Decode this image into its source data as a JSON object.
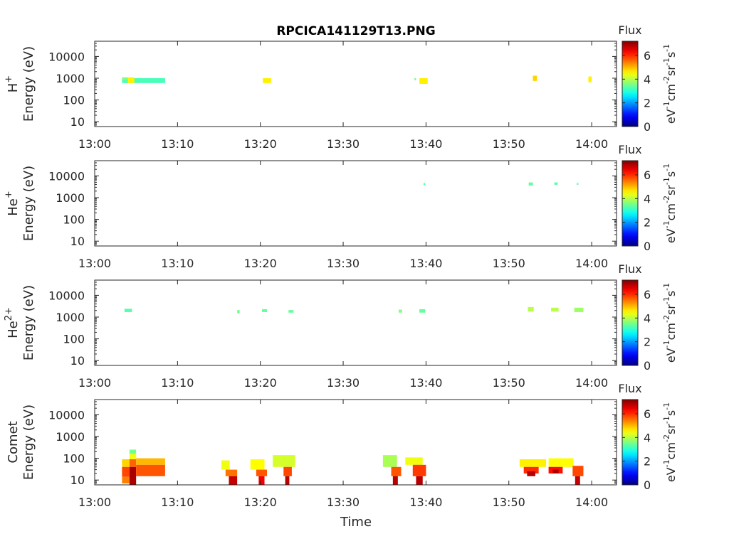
{
  "figure": {
    "title": "RPCICA141129T13.PNG",
    "xlabel": "Time"
  },
  "colorbar": {
    "title": "Flux",
    "ticks": [
      "0",
      "2",
      "4",
      "6"
    ],
    "label_parts": [
      "eV",
      "-1",
      "cm",
      "-2",
      "sr",
      "-1",
      "s",
      "-1"
    ],
    "range": [
      0,
      7.2
    ],
    "colormap": "jet"
  },
  "chart_data": [
    {
      "type": "heatmap",
      "species_base": "H",
      "species_sup": "+",
      "ylabel": "Energy (eV)",
      "y_scale": "log",
      "ylim": [
        6,
        50000
      ],
      "y_ticks": [
        "10",
        "100",
        "1000",
        "10000"
      ],
      "x_ticks": [
        "13:00",
        "13:10",
        "13:20",
        "13:30",
        "13:40",
        "13:50",
        "14:00"
      ],
      "xlim": [
        "13:00",
        "14:03"
      ],
      "cells": [
        {
          "t0": "13:03.3",
          "t1": "13:08.5",
          "e0": 600,
          "e1": 1000,
          "v": 3.2
        },
        {
          "t0": "13:03.3",
          "t1": "13:04.0",
          "e0": 800,
          "e1": 1100,
          "v": 3.6
        },
        {
          "t0": "13:04.0",
          "t1": "13:04.8",
          "e0": 600,
          "e1": 1100,
          "v": 4.6
        },
        {
          "t0": "13:20.3",
          "t1": "13:21.3",
          "e0": 600,
          "e1": 1000,
          "v": 4.6
        },
        {
          "t0": "13:38.6",
          "t1": "13:38.8",
          "e0": 800,
          "e1": 1000,
          "v": 3.6
        },
        {
          "t0": "13:39.2",
          "t1": "13:40.2",
          "e0": 550,
          "e1": 1000,
          "v": 4.6
        },
        {
          "t0": "13:52.9",
          "t1": "13:53.4",
          "e0": 750,
          "e1": 1300,
          "v": 4.8
        },
        {
          "t0": "13:59.6",
          "t1": "14:00.0",
          "e0": 650,
          "e1": 1200,
          "v": 4.6
        }
      ]
    },
    {
      "type": "heatmap",
      "species_base": "He",
      "species_sup": "+",
      "ylabel": "Energy (eV)",
      "y_scale": "log",
      "ylim": [
        6,
        50000
      ],
      "y_ticks": [
        "10",
        "100",
        "1000",
        "10000"
      ],
      "x_ticks": [
        "13:00",
        "13:10",
        "13:20",
        "13:30",
        "13:40",
        "13:50",
        "14:00"
      ],
      "xlim": [
        "13:00",
        "14:03"
      ],
      "cells": [
        {
          "t0": "13:39.7",
          "t1": "13:39.9",
          "e0": 3800,
          "e1": 4700,
          "v": 3.3
        },
        {
          "t0": "13:52.4",
          "t1": "13:52.9",
          "e0": 3600,
          "e1": 5000,
          "v": 3.4
        },
        {
          "t0": "13:55.5",
          "t1": "13:55.9",
          "e0": 3900,
          "e1": 5000,
          "v": 3.3
        },
        {
          "t0": "13:58.2",
          "t1": "13:58.4",
          "e0": 3900,
          "e1": 4700,
          "v": 3.3
        }
      ]
    },
    {
      "type": "heatmap",
      "species_base": "He",
      "species_sup": "2+",
      "ylabel": "Energy (eV)",
      "y_scale": "log",
      "ylim": [
        6,
        50000
      ],
      "y_ticks": [
        "10",
        "100",
        "1000",
        "10000"
      ],
      "x_ticks": [
        "13:00",
        "13:10",
        "13:20",
        "13:30",
        "13:40",
        "13:50",
        "14:00"
      ],
      "xlim": [
        "13:00",
        "14:03"
      ],
      "cells": [
        {
          "t0": "13:03.6",
          "t1": "13:04.5",
          "e0": 1700,
          "e1": 2400,
          "v": 3.3
        },
        {
          "t0": "13:17.2",
          "t1": "13:17.5",
          "e0": 1500,
          "e1": 2100,
          "v": 3.5
        },
        {
          "t0": "13:20.2",
          "t1": "13:20.8",
          "e0": 1700,
          "e1": 2300,
          "v": 3.4
        },
        {
          "t0": "13:23.4",
          "t1": "13:24.0",
          "e0": 1600,
          "e1": 2100,
          "v": 3.4
        },
        {
          "t0": "13:36.7",
          "t1": "13:37.1",
          "e0": 1600,
          "e1": 2200,
          "v": 3.6
        },
        {
          "t0": "13:39.2",
          "t1": "13:39.9",
          "e0": 1600,
          "e1": 2300,
          "v": 3.4
        },
        {
          "t0": "13:52.3",
          "t1": "13:53.0",
          "e0": 1800,
          "e1": 2900,
          "v": 4.0
        },
        {
          "t0": "13:55.1",
          "t1": "13:56.0",
          "e0": 1800,
          "e1": 2700,
          "v": 4.0
        },
        {
          "t0": "13:57.9",
          "t1": "13:59.0",
          "e0": 1700,
          "e1": 2700,
          "v": 3.8
        }
      ]
    },
    {
      "type": "heatmap",
      "species_base": "Comet",
      "species_sup": "",
      "ylabel": "Energy (eV)",
      "y_scale": "log",
      "ylim": [
        6,
        50000
      ],
      "y_ticks": [
        "10",
        "100",
        "1000",
        "10000"
      ],
      "x_ticks": [
        "13:00",
        "13:10",
        "13:20",
        "13:30",
        "13:40",
        "13:50",
        "14:00"
      ],
      "xlim": [
        "13:00",
        "14:03"
      ],
      "cells": [
        {
          "t0": "13:03.3",
          "t1": "13:04.2",
          "e0": 40,
          "e1": 90,
          "v": 4.8
        },
        {
          "t0": "13:03.3",
          "t1": "13:04.2",
          "e0": 14,
          "e1": 40,
          "v": 5.8
        },
        {
          "t0": "13:03.3",
          "t1": "13:04.2",
          "e0": 7,
          "e1": 14,
          "v": 5.4
        },
        {
          "t0": "13:04.2",
          "t1": "13:05.0",
          "e0": 160,
          "e1": 250,
          "v": 3.5
        },
        {
          "t0": "13:04.2",
          "t1": "13:05.0",
          "e0": 90,
          "e1": 160,
          "v": 4.4
        },
        {
          "t0": "13:04.2",
          "t1": "13:05.0",
          "e0": 40,
          "e1": 90,
          "v": 5.6
        },
        {
          "t0": "13:04.2",
          "t1": "13:05.0",
          "e0": 6,
          "e1": 40,
          "v": 6.9
        },
        {
          "t0": "13:05.0",
          "t1": "13:08.5",
          "e0": 50,
          "e1": 100,
          "v": 5.0
        },
        {
          "t0": "13:05.0",
          "t1": "13:08.5",
          "e0": 15,
          "e1": 50,
          "v": 5.7
        },
        {
          "t0": "13:15.3",
          "t1": "13:16.3",
          "e0": 30,
          "e1": 80,
          "v": 4.4
        },
        {
          "t0": "13:15.8",
          "t1": "13:17.2",
          "e0": 15,
          "e1": 30,
          "v": 5.5
        },
        {
          "t0": "13:16.2",
          "t1": "13:17.2",
          "e0": 6,
          "e1": 15,
          "v": 6.7
        },
        {
          "t0": "13:18.8",
          "t1": "13:20.5",
          "e0": 30,
          "e1": 90,
          "v": 4.5
        },
        {
          "t0": "13:19.5",
          "t1": "13:20.8",
          "e0": 15,
          "e1": 30,
          "v": 5.7
        },
        {
          "t0": "13:19.8",
          "t1": "13:20.5",
          "e0": 6,
          "e1": 15,
          "v": 6.4
        },
        {
          "t0": "13:21.5",
          "t1": "13:24.2",
          "e0": 40,
          "e1": 140,
          "v": 4.2
        },
        {
          "t0": "13:22.8",
          "t1": "13:23.8",
          "e0": 15,
          "e1": 40,
          "v": 5.8
        },
        {
          "t0": "13:23.0",
          "t1": "13:23.5",
          "e0": 6,
          "e1": 15,
          "v": 6.8
        },
        {
          "t0": "13:34.8",
          "t1": "13:36.5",
          "e0": 40,
          "e1": 140,
          "v": 3.9
        },
        {
          "t0": "13:35.8",
          "t1": "13:37.0",
          "e0": 15,
          "e1": 40,
          "v": 5.7
        },
        {
          "t0": "13:36.0",
          "t1": "13:36.6",
          "e0": 6,
          "e1": 15,
          "v": 6.8
        },
        {
          "t0": "13:37.5",
          "t1": "13:39.6",
          "e0": 50,
          "e1": 110,
          "v": 4.4
        },
        {
          "t0": "13:38.4",
          "t1": "13:40.0",
          "e0": 15,
          "e1": 50,
          "v": 5.9
        },
        {
          "t0": "13:38.8",
          "t1": "13:39.6",
          "e0": 6,
          "e1": 15,
          "v": 6.8
        },
        {
          "t0": "13:51.3",
          "t1": "13:54.5",
          "e0": 40,
          "e1": 90,
          "v": 4.6
        },
        {
          "t0": "13:51.8",
          "t1": "13:53.6",
          "e0": 20,
          "e1": 40,
          "v": 6.0
        },
        {
          "t0": "13:52.2",
          "t1": "13:53.2",
          "e0": 15,
          "e1": 25,
          "v": 6.8
        },
        {
          "t0": "13:54.8",
          "t1": "13:57.8",
          "e0": 40,
          "e1": 100,
          "v": 4.5
        },
        {
          "t0": "13:54.8",
          "t1": "13:56.5",
          "e0": 20,
          "e1": 40,
          "v": 6.2
        },
        {
          "t0": "13:55.3",
          "t1": "13:56.0",
          "e0": 20,
          "e1": 30,
          "v": 6.9
        },
        {
          "t0": "13:57.7",
          "t1": "13:59.0",
          "e0": 15,
          "e1": 45,
          "v": 5.8
        },
        {
          "t0": "13:58.0",
          "t1": "13:58.6",
          "e0": 6,
          "e1": 15,
          "v": 6.7
        }
      ]
    }
  ]
}
